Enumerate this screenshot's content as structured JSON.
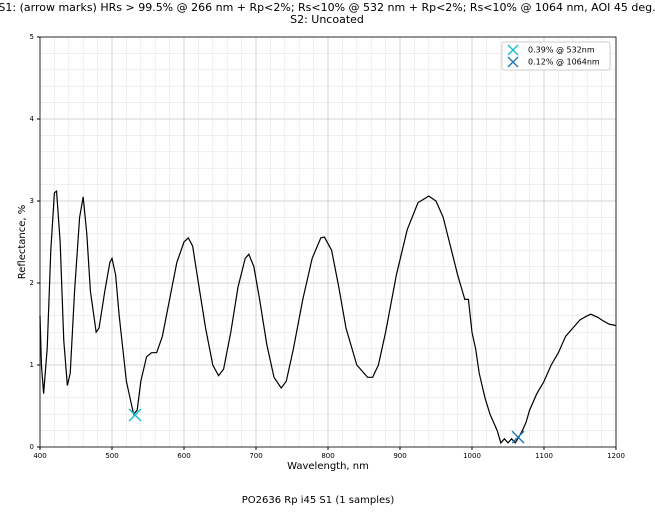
{
  "chart_data": {
    "type": "line",
    "title": "S1: (arrow marks) HRs > 99.5% @ 266 nm + Rp<2%; Rs<10% @ 532 nm + Rp<2%; Rs<10% @ 1064 nm, AOI 45 deg.",
    "subtitle": "S2: Uncoated",
    "x_label": "Wavelength, nm",
    "y_label": "Reflectance, %",
    "caption": "PO2636 Rp i45 S1 (1 samples)",
    "xlim": [
      400,
      1200
    ],
    "ylim": [
      0,
      5
    ],
    "xticks": [
      400,
      500,
      600,
      700,
      800,
      900,
      1000,
      1100,
      1200
    ],
    "yticks": [
      0,
      1,
      2,
      3,
      4,
      5
    ],
    "grid": true,
    "minor_grid": true,
    "legend": "upper right",
    "series": [
      {
        "color": "#000000",
        "x": [
          400,
          402,
          405,
          410,
          415,
          420,
          423,
          428,
          433,
          438,
          442,
          448,
          455,
          460,
          465,
          470,
          478,
          482,
          490,
          497,
          500,
          505,
          510,
          520,
          530,
          535,
          540,
          548,
          555,
          562,
          570,
          580,
          590,
          600,
          606,
          612,
          620,
          630,
          640,
          648,
          655,
          665,
          675,
          685,
          690,
          697,
          705,
          715,
          725,
          735,
          742,
          752,
          765,
          778,
          790,
          795,
          805,
          815,
          825,
          840,
          855,
          862,
          870,
          880,
          895,
          910,
          925,
          940,
          950,
          960,
          970,
          980,
          990,
          995,
          1000,
          1005,
          1010,
          1018,
          1025,
          1035,
          1040,
          1045,
          1050,
          1055,
          1060,
          1065,
          1070,
          1075,
          1080,
          1090,
          1100,
          1110,
          1120,
          1130,
          1140,
          1150,
          1160,
          1165,
          1175,
          1180,
          1190,
          1200
        ],
        "values": [
          1.6,
          1.0,
          0.65,
          1.2,
          2.4,
          3.1,
          3.12,
          2.5,
          1.3,
          0.75,
          0.9,
          1.9,
          2.8,
          3.05,
          2.6,
          1.9,
          1.4,
          1.45,
          1.9,
          2.25,
          2.3,
          2.1,
          1.6,
          0.8,
          0.4,
          0.45,
          0.8,
          1.1,
          1.15,
          1.15,
          1.35,
          1.8,
          2.25,
          2.5,
          2.55,
          2.45,
          2.0,
          1.45,
          1.0,
          0.87,
          0.95,
          1.4,
          1.95,
          2.3,
          2.35,
          2.2,
          1.8,
          1.25,
          0.85,
          0.72,
          0.8,
          1.2,
          1.8,
          2.3,
          2.55,
          2.56,
          2.4,
          1.95,
          1.45,
          1.0,
          0.85,
          0.85,
          1.0,
          1.4,
          2.1,
          2.65,
          2.98,
          3.06,
          3.0,
          2.8,
          2.45,
          2.1,
          1.8,
          1.8,
          1.4,
          1.2,
          0.9,
          0.6,
          0.4,
          0.2,
          0.05,
          0.1,
          0.05,
          0.1,
          0.05,
          0.12,
          0.2,
          0.3,
          0.45,
          0.65,
          0.8,
          1.0,
          1.15,
          1.35,
          1.45,
          1.55,
          1.6,
          1.62,
          1.58,
          1.55,
          1.5,
          1.48
        ]
      }
    ],
    "markers": [
      {
        "name": "0.39% @ 532nm",
        "color": "#17becf",
        "x": 532,
        "y": 0.39
      },
      {
        "name": "0.12% @ 1064nm",
        "color": "#1f77b4",
        "x": 1064,
        "y": 0.12
      }
    ]
  }
}
